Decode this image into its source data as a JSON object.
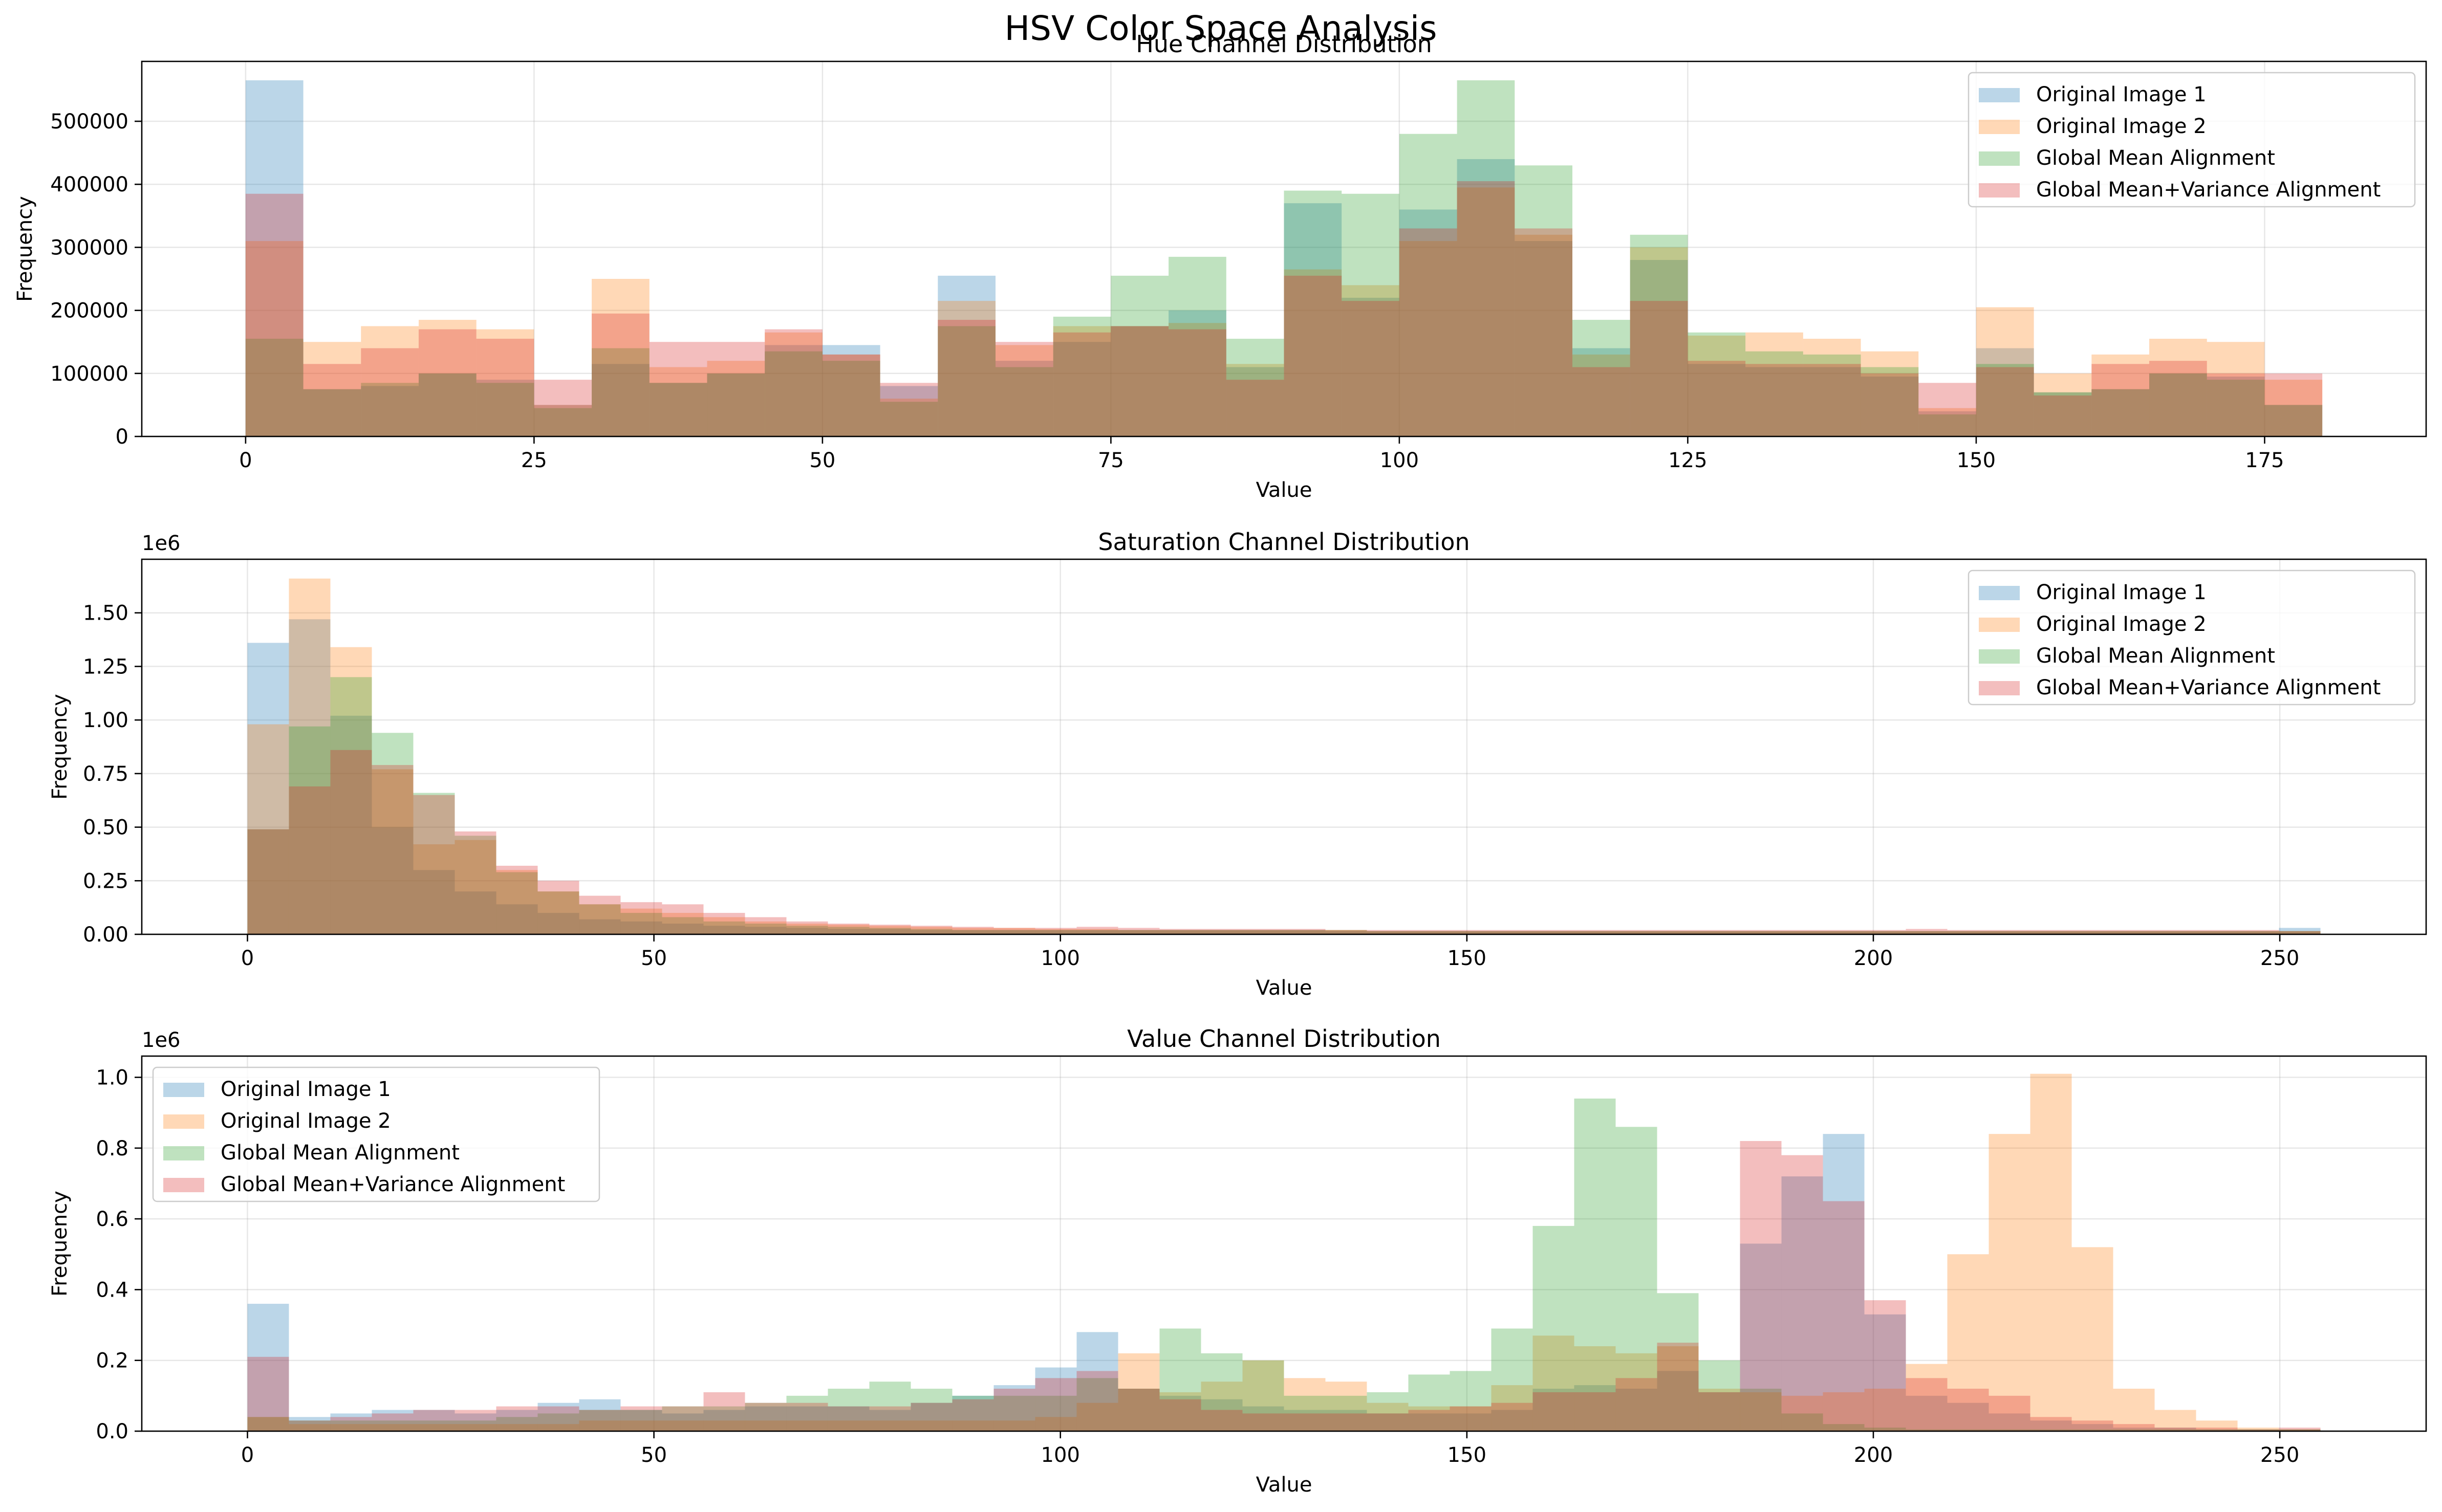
{
  "figure": {
    "suptitle": "HSV Color Space Analysis"
  },
  "colors": {
    "Original Image 1": "#1f77b4",
    "Original Image 2": "#ff7f0e",
    "Global Mean Alignment": "#2ca02c",
    "Global Mean+Variance Alignment": "#d62728"
  },
  "chart_data": [
    {
      "type": "bar",
      "title": "Hue Channel Distribution",
      "xlabel": "Value",
      "ylabel": "Frequency",
      "offset_label": "",
      "xlim": [
        -9,
        189
      ],
      "ylim": [
        0,
        595000
      ],
      "xticks": [
        0,
        25,
        50,
        75,
        100,
        125,
        150,
        175
      ],
      "yticks": [
        0,
        100000,
        200000,
        300000,
        400000,
        500000
      ],
      "ytick_labels": [
        "0",
        "100000",
        "200000",
        "300000",
        "400000",
        "500000"
      ],
      "legend": "top-right",
      "bins": {
        "start": 0,
        "width": 5,
        "count": 36
      },
      "series": [
        {
          "name": "Original Image 1",
          "values": [
            565000,
            75000,
            80000,
            100000,
            90000,
            50000,
            115000,
            85000,
            100000,
            145000,
            145000,
            80000,
            255000,
            120000,
            150000,
            175000,
            200000,
            110000,
            370000,
            220000,
            360000,
            440000,
            310000,
            140000,
            280000,
            115000,
            110000,
            110000,
            95000,
            40000,
            140000,
            70000,
            75000,
            100000,
            95000,
            50000
          ]
        },
        {
          "name": "Original Image 2",
          "values": [
            310000,
            150000,
            175000,
            185000,
            170000,
            50000,
            250000,
            110000,
            120000,
            165000,
            130000,
            60000,
            215000,
            145000,
            175000,
            175000,
            180000,
            115000,
            265000,
            240000,
            310000,
            395000,
            320000,
            130000,
            300000,
            160000,
            165000,
            155000,
            135000,
            45000,
            205000,
            100000,
            130000,
            155000,
            150000,
            90000
          ]
        },
        {
          "name": "Global Mean Alignment",
          "values": [
            155000,
            75000,
            85000,
            100000,
            85000,
            45000,
            140000,
            85000,
            100000,
            135000,
            120000,
            55000,
            175000,
            110000,
            190000,
            255000,
            285000,
            155000,
            390000,
            385000,
            480000,
            565000,
            430000,
            185000,
            320000,
            165000,
            135000,
            130000,
            110000,
            35000,
            115000,
            70000,
            75000,
            100000,
            90000,
            50000
          ]
        },
        {
          "name": "Global Mean+Variance Alignment",
          "values": [
            385000,
            115000,
            140000,
            170000,
            155000,
            90000,
            195000,
            150000,
            150000,
            170000,
            130000,
            85000,
            185000,
            150000,
            165000,
            175000,
            170000,
            90000,
            255000,
            215000,
            330000,
            405000,
            330000,
            110000,
            215000,
            120000,
            115000,
            115000,
            100000,
            85000,
            110000,
            65000,
            115000,
            120000,
            100000,
            100000
          ]
        }
      ]
    },
    {
      "type": "bar",
      "title": "Saturation Channel Distribution",
      "xlabel": "Value",
      "ylabel": "Frequency",
      "offset_label": "1e6",
      "xlim": [
        -13,
        268
      ],
      "ylim": [
        0,
        1.75
      ],
      "xticks": [
        0,
        50,
        100,
        150,
        200,
        250
      ],
      "yticks": [
        0,
        0.25,
        0.5,
        0.75,
        1.0,
        1.25,
        1.5
      ],
      "ytick_labels": [
        "0.00",
        "0.25",
        "0.50",
        "0.75",
        "1.00",
        "1.25",
        "1.50"
      ],
      "legend": "top-right",
      "bins": {
        "start": 0,
        "width": 5.1,
        "count": 50
      },
      "series": [
        {
          "name": "Original Image 1",
          "values": [
            1.36,
            1.47,
            1.02,
            0.5,
            0.3,
            0.2,
            0.14,
            0.1,
            0.07,
            0.06,
            0.05,
            0.04,
            0.035,
            0.03,
            0.025,
            0.025,
            0.02,
            0.02,
            0.02,
            0.02,
            0.02,
            0.02,
            0.02,
            0.02,
            0.02,
            0.02,
            0.015,
            0.015,
            0.015,
            0.015,
            0.015,
            0.015,
            0.015,
            0.015,
            0.015,
            0.015,
            0.015,
            0.015,
            0.015,
            0.015,
            0.015,
            0.015,
            0.015,
            0.015,
            0.015,
            0.015,
            0.015,
            0.015,
            0.015,
            0.03
          ]
        },
        {
          "name": "Original Image 2",
          "values": [
            0.98,
            1.66,
            1.34,
            0.77,
            0.42,
            0.44,
            0.3,
            0.2,
            0.14,
            0.12,
            0.1,
            0.08,
            0.06,
            0.05,
            0.045,
            0.04,
            0.035,
            0.03,
            0.03,
            0.025,
            0.025,
            0.02,
            0.02,
            0.02,
            0.02,
            0.02,
            0.02,
            0.015,
            0.015,
            0.015,
            0.015,
            0.015,
            0.015,
            0.015,
            0.015,
            0.015,
            0.015,
            0.015,
            0.015,
            0.015,
            0.015,
            0.015,
            0.015,
            0.015,
            0.015,
            0.015,
            0.015,
            0.015,
            0.015,
            0.015
          ]
        },
        {
          "name": "Global Mean Alignment",
          "values": [
            0.49,
            0.97,
            1.2,
            0.94,
            0.66,
            0.46,
            0.29,
            0.2,
            0.14,
            0.1,
            0.08,
            0.06,
            0.05,
            0.04,
            0.035,
            0.03,
            0.025,
            0.02,
            0.02,
            0.02,
            0.02,
            0.02,
            0.02,
            0.02,
            0.02,
            0.02,
            0.02,
            0.015,
            0.015,
            0.015,
            0.015,
            0.015,
            0.015,
            0.015,
            0.015,
            0.015,
            0.015,
            0.015,
            0.015,
            0.015,
            0.015,
            0.015,
            0.015,
            0.015,
            0.015,
            0.015,
            0.015,
            0.015,
            0.015,
            0.015
          ]
        },
        {
          "name": "Global Mean+Variance Alignment",
          "values": [
            0.49,
            0.69,
            0.86,
            0.79,
            0.65,
            0.48,
            0.32,
            0.25,
            0.18,
            0.15,
            0.14,
            0.1,
            0.08,
            0.06,
            0.05,
            0.045,
            0.04,
            0.035,
            0.03,
            0.03,
            0.035,
            0.03,
            0.025,
            0.025,
            0.025,
            0.025,
            0.02,
            0.02,
            0.02,
            0.02,
            0.02,
            0.02,
            0.02,
            0.02,
            0.02,
            0.02,
            0.02,
            0.02,
            0.02,
            0.02,
            0.025,
            0.02,
            0.02,
            0.02,
            0.02,
            0.02,
            0.02,
            0.02,
            0.02,
            0.015
          ]
        }
      ]
    },
    {
      "type": "bar",
      "title": "Value Channel Distribution",
      "xlabel": "Value",
      "ylabel": "Frequency",
      "offset_label": "1e6",
      "xlim": [
        -13,
        268
      ],
      "ylim": [
        0,
        1.06
      ],
      "xticks": [
        0,
        50,
        100,
        150,
        200,
        250
      ],
      "yticks": [
        0,
        0.2,
        0.4,
        0.6,
        0.8,
        1.0
      ],
      "ytick_labels": [
        "0.0",
        "0.2",
        "0.4",
        "0.6",
        "0.8",
        "1.0"
      ],
      "legend": "top-left",
      "bins": {
        "start": 0,
        "width": 5.1,
        "count": 50
      },
      "series": [
        {
          "name": "Original Image 1",
          "values": [
            0.36,
            0.04,
            0.05,
            0.06,
            0.06,
            0.05,
            0.06,
            0.08,
            0.09,
            0.06,
            0.05,
            0.06,
            0.07,
            0.07,
            0.07,
            0.06,
            0.08,
            0.1,
            0.13,
            0.18,
            0.28,
            0.12,
            0.1,
            0.09,
            0.07,
            0.06,
            0.06,
            0.05,
            0.05,
            0.05,
            0.06,
            0.12,
            0.13,
            0.12,
            0.17,
            0.11,
            0.53,
            0.72,
            0.84,
            0.33,
            0.1,
            0.08,
            0.05,
            0.03,
            0.02,
            0.01,
            0.01,
            0.005,
            0.005,
            0.005
          ]
        },
        {
          "name": "Original Image 2",
          "values": [
            0.04,
            0.02,
            0.02,
            0.02,
            0.02,
            0.02,
            0.02,
            0.02,
            0.03,
            0.03,
            0.03,
            0.03,
            0.03,
            0.03,
            0.03,
            0.03,
            0.03,
            0.03,
            0.03,
            0.04,
            0.08,
            0.22,
            0.11,
            0.14,
            0.2,
            0.15,
            0.14,
            0.08,
            0.07,
            0.07,
            0.13,
            0.27,
            0.24,
            0.22,
            0.24,
            0.12,
            0.11,
            0.1,
            0.11,
            0.12,
            0.19,
            0.5,
            0.84,
            1.01,
            0.52,
            0.12,
            0.06,
            0.03,
            0.01,
            0.005
          ]
        },
        {
          "name": "Global Mean Alignment",
          "values": [
            0.04,
            0.03,
            0.03,
            0.03,
            0.03,
            0.03,
            0.04,
            0.05,
            0.06,
            0.06,
            0.07,
            0.07,
            0.08,
            0.1,
            0.12,
            0.14,
            0.12,
            0.1,
            0.1,
            0.1,
            0.15,
            0.12,
            0.29,
            0.22,
            0.2,
            0.1,
            0.1,
            0.11,
            0.16,
            0.17,
            0.29,
            0.58,
            0.94,
            0.86,
            0.39,
            0.2,
            0.12,
            0.05,
            0.02,
            0.01,
            0.005,
            0.005,
            0.005,
            0.005,
            0.005,
            0.005,
            0.005,
            0.005,
            0.005,
            0.005
          ]
        },
        {
          "name": "Global Mean+Variance Alignment",
          "values": [
            0.21,
            0.03,
            0.04,
            0.05,
            0.06,
            0.06,
            0.07,
            0.07,
            0.06,
            0.07,
            0.07,
            0.11,
            0.08,
            0.08,
            0.07,
            0.07,
            0.08,
            0.09,
            0.12,
            0.15,
            0.17,
            0.12,
            0.09,
            0.06,
            0.05,
            0.05,
            0.05,
            0.05,
            0.06,
            0.07,
            0.08,
            0.11,
            0.11,
            0.15,
            0.25,
            0.11,
            0.82,
            0.78,
            0.65,
            0.37,
            0.15,
            0.12,
            0.1,
            0.04,
            0.03,
            0.02,
            0.01,
            0.01,
            0.005,
            0.01
          ]
        }
      ]
    }
  ]
}
